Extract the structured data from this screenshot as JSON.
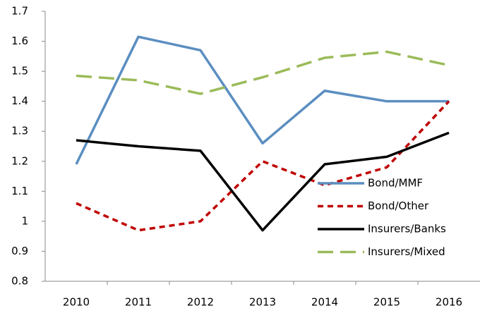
{
  "chart_data": {
    "type": "line",
    "categories": [
      "2010",
      "2011",
      "2012",
      "2013",
      "2014",
      "2015",
      "2016"
    ],
    "series": [
      {
        "name": "Bond/MMF",
        "color": "#5b8ec1",
        "line_style": "solid",
        "values": [
          1.19,
          1.615,
          1.57,
          1.26,
          1.435,
          1.4,
          1.4
        ]
      },
      {
        "name": "Bond/Other",
        "color": "#c00000",
        "line_style": "dashed",
        "values": [
          1.06,
          0.97,
          1.0,
          1.2,
          1.12,
          1.18,
          1.4
        ]
      },
      {
        "name": "Insurers/Banks",
        "color": "#000000",
        "line_style": "solid",
        "values": [
          1.27,
          1.25,
          1.235,
          0.97,
          1.19,
          1.215,
          1.295
        ]
      },
      {
        "name": "Insurers/Mixed",
        "color": "#9bbb59",
        "line_style": "long-dashed",
        "values": [
          1.485,
          1.47,
          1.425,
          1.48,
          1.545,
          1.565,
          1.52
        ]
      }
    ],
    "ylim": [
      0.8,
      1.7
    ],
    "yticks": [
      0.8,
      0.9,
      1,
      1.1,
      1.2,
      1.3,
      1.4,
      1.5,
      1.6,
      1.7
    ],
    "grid": false,
    "legend": "lower right"
  }
}
